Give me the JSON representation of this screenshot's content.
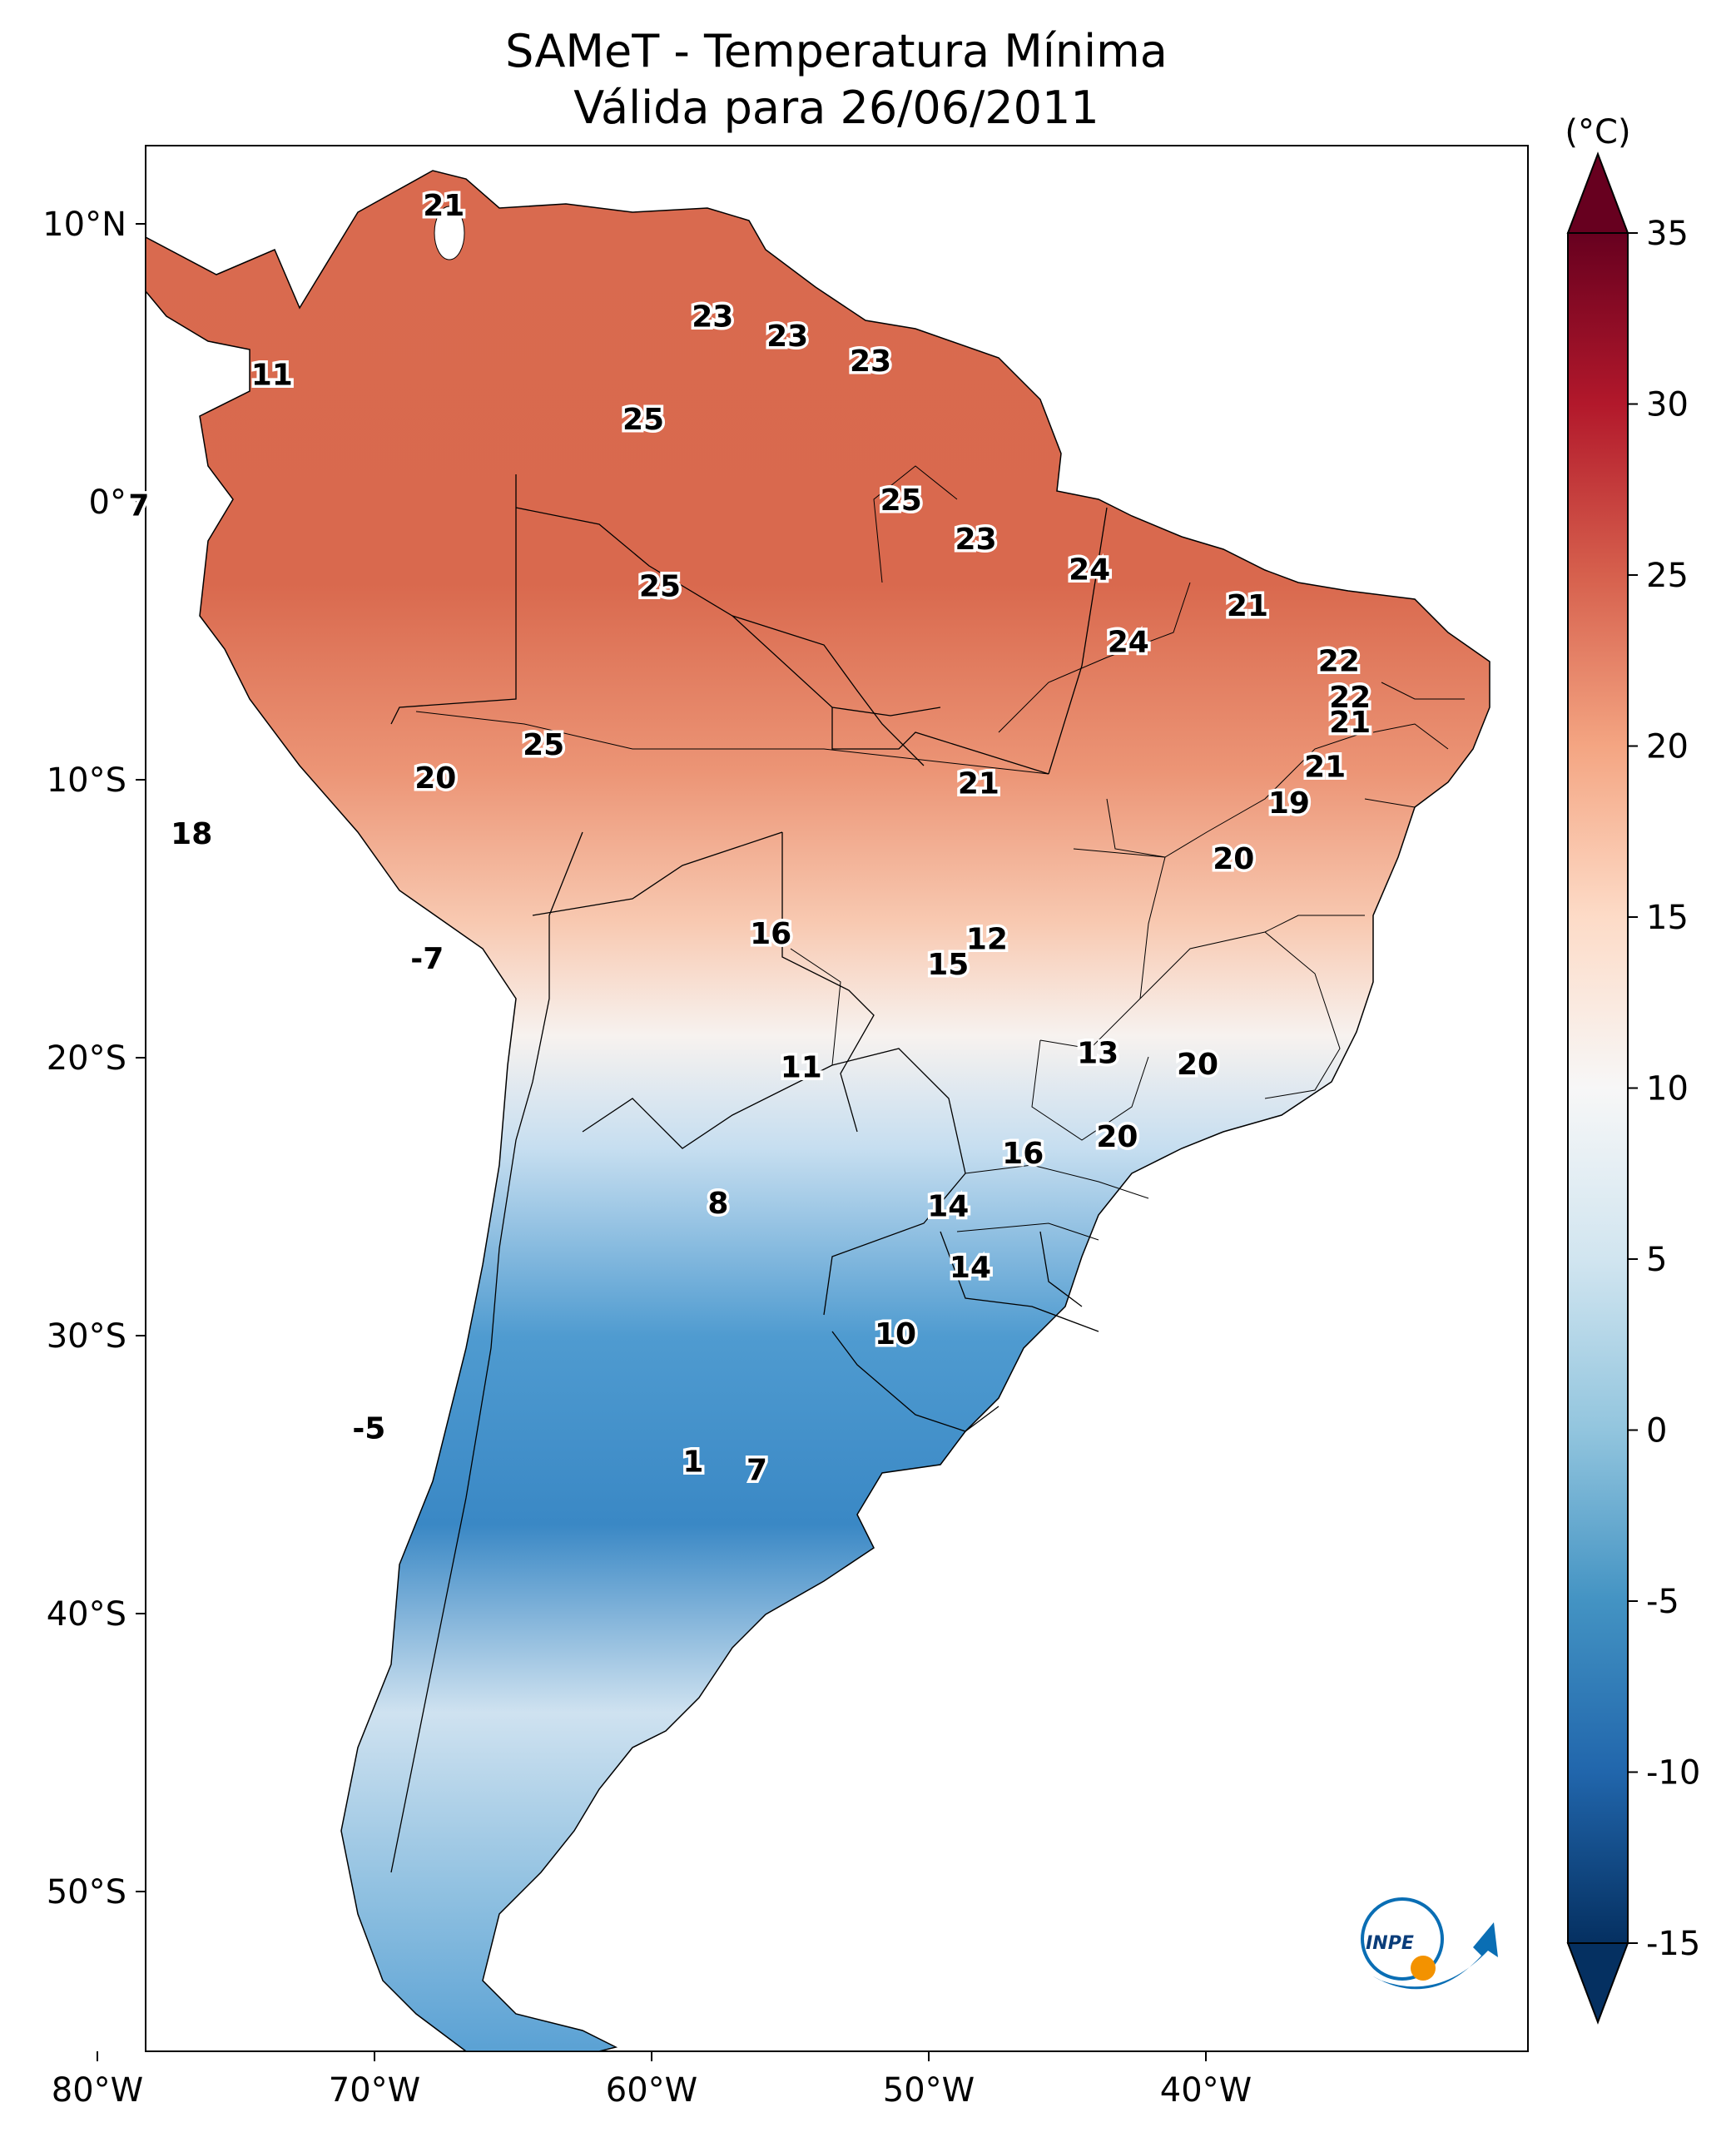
{
  "title_line1": "SAMeT - Temperatura Mínima",
  "title_line2": "Válida para 26/06/2011",
  "colorbar": {
    "unit": "(°C)",
    "min": -15,
    "max": 35,
    "ticks": [
      "35",
      "30",
      "25",
      "20",
      "15",
      "10",
      "5",
      "0",
      "-5",
      "-10",
      "-15"
    ]
  },
  "lon_ticks": [
    "80°W",
    "70°W",
    "60°W",
    "50°W",
    "40°W"
  ],
  "lat_ticks": [
    "10°N",
    "0°",
    "10°S",
    "20°S",
    "30°S",
    "40°S",
    "50°S"
  ],
  "station_labels": [
    {
      "text": "21",
      "lon": -67.5,
      "lat": 10.6
    },
    {
      "text": "23",
      "lon": -57.8,
      "lat": 6.6
    },
    {
      "text": "23",
      "lon": -55.1,
      "lat": 5.9
    },
    {
      "text": "23",
      "lon": -52.1,
      "lat": 5.0
    },
    {
      "text": "11",
      "lon": -73.7,
      "lat": 4.5
    },
    {
      "text": "25",
      "lon": -60.3,
      "lat": 2.9
    },
    {
      "text": "7",
      "lon": -78.5,
      "lat": -0.2
    },
    {
      "text": "25",
      "lon": -51.0,
      "lat": 0.0
    },
    {
      "text": "23",
      "lon": -48.3,
      "lat": -1.4
    },
    {
      "text": "24",
      "lon": -44.2,
      "lat": -2.5
    },
    {
      "text": "25",
      "lon": -59.7,
      "lat": -3.1
    },
    {
      "text": "21",
      "lon": -38.5,
      "lat": -3.8
    },
    {
      "text": "24",
      "lon": -42.8,
      "lat": -5.1
    },
    {
      "text": "22",
      "lon": -35.2,
      "lat": -5.8
    },
    {
      "text": "22",
      "lon": -34.8,
      "lat": -7.1
    },
    {
      "text": "21",
      "lon": -34.8,
      "lat": -8.0
    },
    {
      "text": "25",
      "lon": -63.9,
      "lat": -8.8
    },
    {
      "text": "21",
      "lon": -35.7,
      "lat": -9.6
    },
    {
      "text": "20",
      "lon": -67.8,
      "lat": -10.0
    },
    {
      "text": "21",
      "lon": -48.2,
      "lat": -10.2
    },
    {
      "text": "19",
      "lon": -37.0,
      "lat": -10.9
    },
    {
      "text": "18",
      "lon": -76.6,
      "lat": -12.0
    },
    {
      "text": "20",
      "lon": -39.0,
      "lat": -12.9
    },
    {
      "text": "16",
      "lon": -55.7,
      "lat": -15.6
    },
    {
      "text": "12",
      "lon": -47.9,
      "lat": -15.8
    },
    {
      "text": "15",
      "lon": -49.3,
      "lat": -16.7
    },
    {
      "text": "-7",
      "lon": -68.1,
      "lat": -16.5
    },
    {
      "text": "13",
      "lon": -43.9,
      "lat": -19.9
    },
    {
      "text": "11",
      "lon": -54.6,
      "lat": -20.4
    },
    {
      "text": "20",
      "lon": -40.3,
      "lat": -20.3
    },
    {
      "text": "20",
      "lon": -43.2,
      "lat": -22.9
    },
    {
      "text": "16",
      "lon": -46.6,
      "lat": -23.5
    },
    {
      "text": "8",
      "lon": -57.6,
      "lat": -25.3
    },
    {
      "text": "14",
      "lon": -49.3,
      "lat": -25.4
    },
    {
      "text": "14",
      "lon": -48.5,
      "lat": -27.6
    },
    {
      "text": "10",
      "lon": -51.2,
      "lat": -30.0
    },
    {
      "text": "-5",
      "lon": -70.2,
      "lat": -33.4
    },
    {
      "text": "1",
      "lon": -58.5,
      "lat": -34.6
    },
    {
      "text": "7",
      "lon": -56.2,
      "lat": -34.9
    }
  ],
  "logo_text": "INPE"
}
